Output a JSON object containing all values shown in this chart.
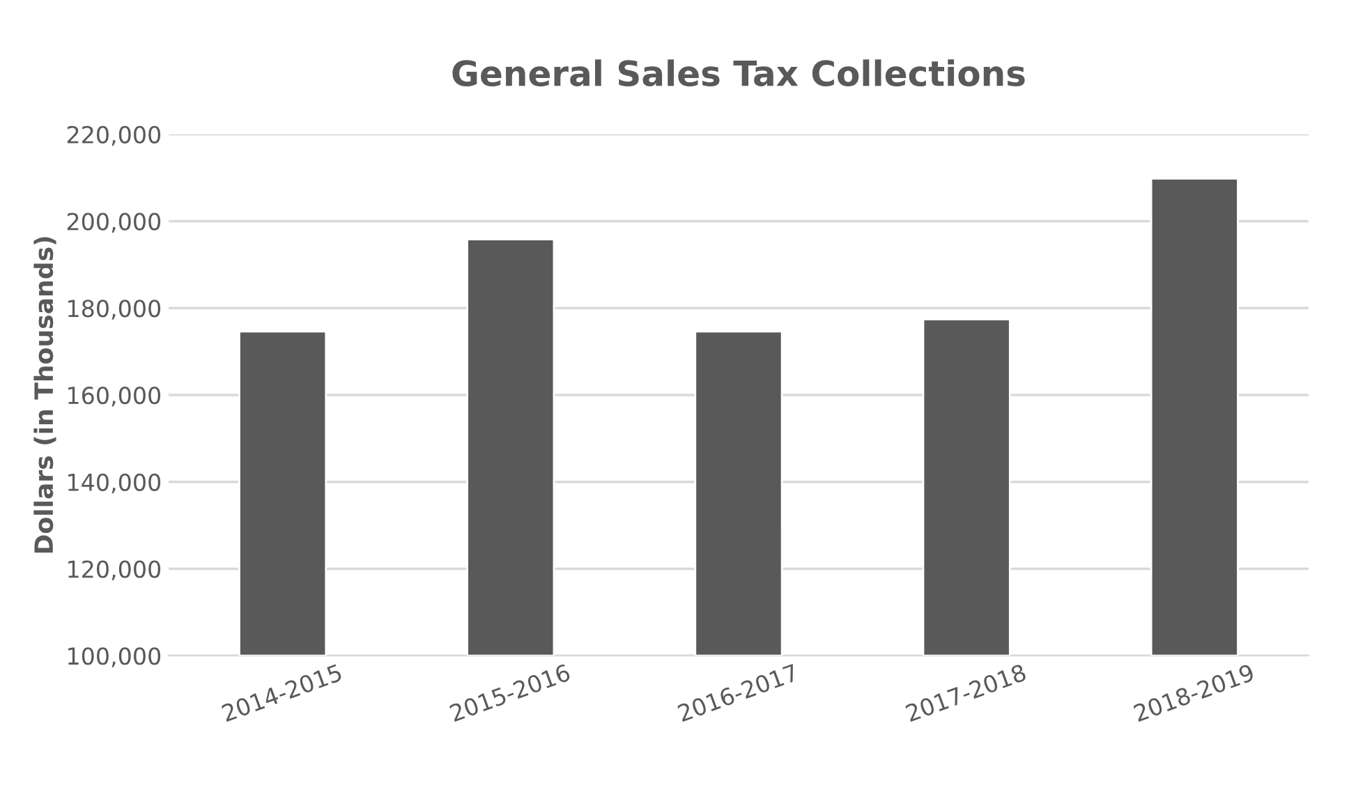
{
  "chart_data": {
    "type": "bar",
    "title": "General Sales Tax Collections",
    "ylabel": "Dollars (in Thousands)",
    "categories": [
      "2014-2015",
      "2015-2016",
      "2016-2017",
      "2017-2018",
      "2018-2019"
    ],
    "values": [
      174600,
      195800,
      174600,
      177400,
      209800
    ],
    "color": "#595959",
    "ylim": [
      100000,
      220000
    ],
    "yticks": [
      {
        "value": 100000,
        "label": "100,000"
      },
      {
        "value": 120000,
        "label": "120,000"
      },
      {
        "value": 140000,
        "label": "140,000"
      },
      {
        "value": 160000,
        "label": "160,000"
      },
      {
        "value": 180000,
        "label": "180,000"
      },
      {
        "value": 200000,
        "label": "200,000"
      },
      {
        "value": 220000,
        "label": "220,000"
      }
    ],
    "grid": "y"
  }
}
